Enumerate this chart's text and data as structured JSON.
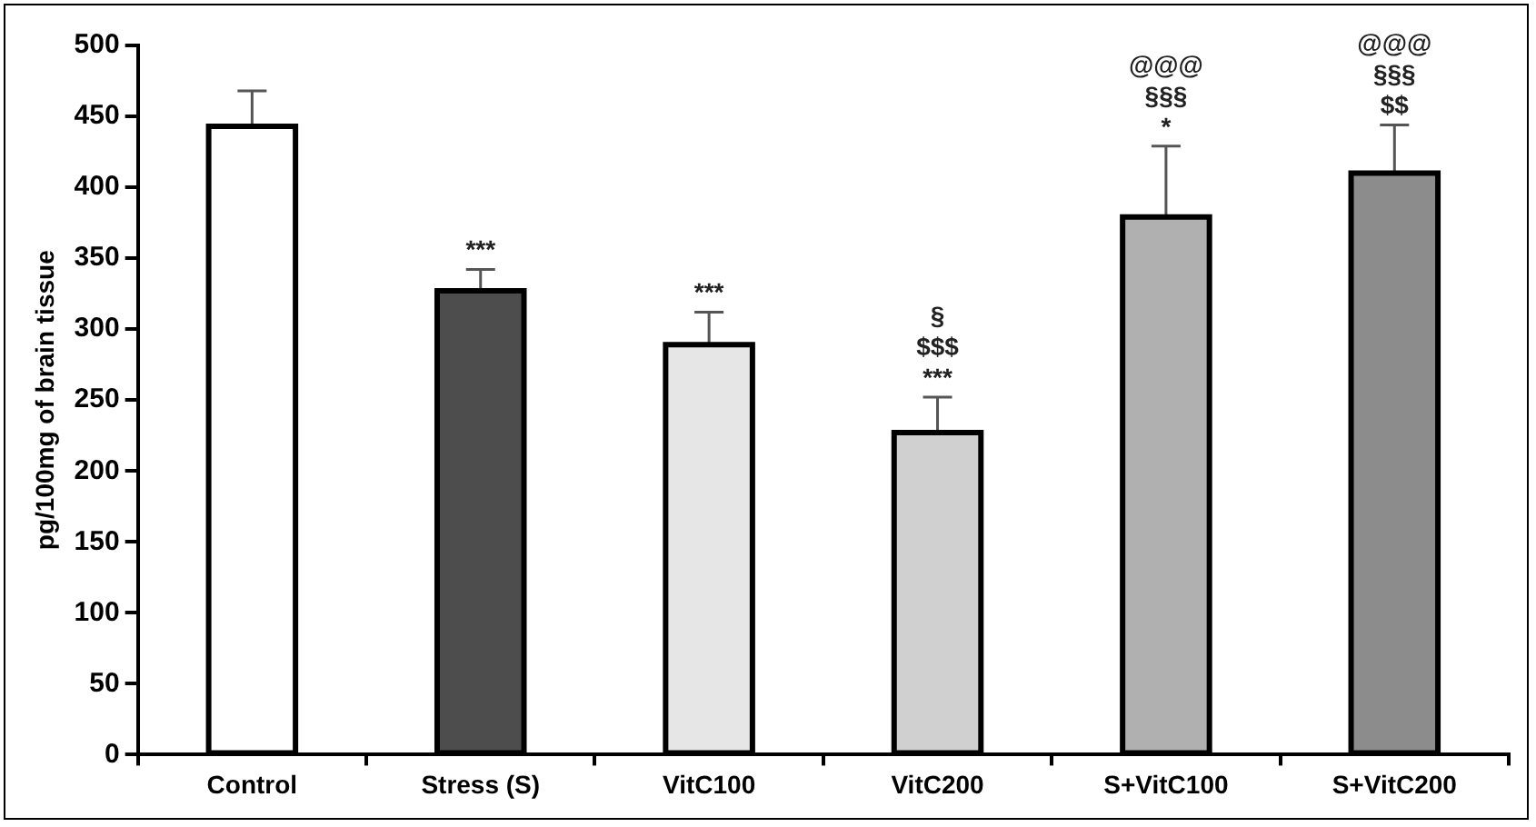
{
  "chart_data": {
    "type": "bar",
    "ylabel": "pg/100mg of brain tissue",
    "categories": [
      "Control",
      "Stress (S)",
      "VitC100",
      "VitC200",
      "S+VitC100",
      "S+VitC200"
    ],
    "values": [
      443,
      327,
      289,
      227,
      379,
      410
    ],
    "errors": [
      25,
      15,
      23,
      25,
      50,
      34
    ],
    "colors": [
      "#ffffff",
      "#4d4d4d",
      "#e6e6e6",
      "#d0d0d0",
      "#b0b0b0",
      "#8c8c8c"
    ],
    "ylim": [
      0,
      500
    ],
    "yticks": [
      0,
      50,
      100,
      150,
      200,
      250,
      300,
      350,
      400,
      450,
      500
    ],
    "grid": false,
    "legend": false,
    "value_labels": [
      null,
      "***",
      "***",
      "§\n$$$\n***",
      "@@@\n§§§\n*",
      "@@@\n§§§\n$$"
    ]
  }
}
